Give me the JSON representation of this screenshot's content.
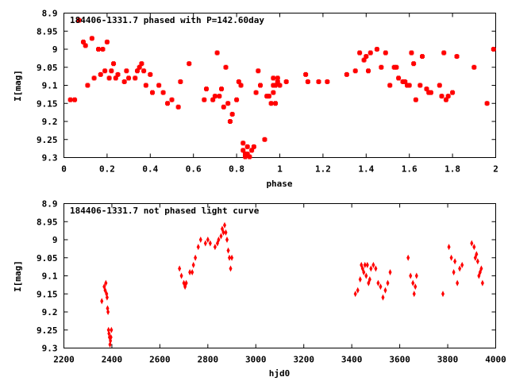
{
  "chart_data": [
    {
      "type": "scatter",
      "title": "184406-1331.7 phased with P=142.60day",
      "xlabel": "phase",
      "ylabel": "I[mag]",
      "xlim": [
        0,
        2
      ],
      "ylim": [
        8.9,
        9.3
      ],
      "y_inverted": true,
      "x_ticks": [
        0,
        0.2,
        0.4,
        0.6,
        0.8,
        1,
        1.2,
        1.4,
        1.6,
        1.8,
        2
      ],
      "x_tick_labels": [
        "0",
        "0.2",
        "0.4",
        "0.6",
        "0.8",
        "1",
        "1.2",
        "1.4",
        "1.6",
        "1.8",
        "2"
      ],
      "y_ticks": [
        8.9,
        8.95,
        9,
        9.05,
        9.1,
        9.15,
        9.2,
        9.25,
        9.3
      ],
      "y_tick_labels": [
        "8.9",
        "8.95",
        "9",
        "9.05",
        "9.1",
        "9.15",
        "9.2",
        "9.25",
        "9.3"
      ],
      "marker_color": "#ff0000",
      "x": [
        0.03,
        0.05,
        0.07,
        0.09,
        0.1,
        0.11,
        0.13,
        0.14,
        0.16,
        0.17,
        0.18,
        0.19,
        0.2,
        0.21,
        0.22,
        0.23,
        0.24,
        0.25,
        0.28,
        0.29,
        0.3,
        0.33,
        0.34,
        0.35,
        0.36,
        0.37,
        0.38,
        0.4,
        0.41,
        0.44,
        0.46,
        0.48,
        0.5,
        0.53,
        0.54,
        0.58,
        0.65,
        0.66,
        0.69,
        0.7,
        0.71,
        0.72,
        0.73,
        0.74,
        0.75,
        0.76,
        0.77,
        0.78,
        0.8,
        0.81,
        0.82,
        0.83,
        0.83,
        0.84,
        0.84,
        0.85,
        0.85,
        0.86,
        0.87,
        0.88,
        0.89,
        0.9,
        0.91,
        0.93,
        0.94,
        0.95,
        0.96,
        0.97,
        0.97,
        0.97,
        0.98,
        0.98,
        0.99,
        0.99,
        1.0,
        1.03,
        1.12,
        1.13,
        1.18,
        1.22,
        1.31,
        1.35,
        1.37,
        1.39,
        1.4,
        1.41,
        1.42,
        1.45,
        1.47,
        1.49,
        1.51,
        1.53,
        1.54,
        1.55,
        1.57,
        1.58,
        1.59,
        1.6,
        1.61,
        1.62,
        1.63,
        1.65,
        1.66,
        1.68,
        1.69,
        1.7,
        1.74,
        1.75,
        1.76,
        1.77,
        1.78,
        1.8,
        1.82,
        1.9,
        1.96,
        1.99
      ],
      "y": [
        9.14,
        9.14,
        8.92,
        8.98,
        8.99,
        9.1,
        8.97,
        9.08,
        9.0,
        9.07,
        9.0,
        9.06,
        8.98,
        9.08,
        9.06,
        9.04,
        9.08,
        9.07,
        9.09,
        9.06,
        9.08,
        9.08,
        9.06,
        9.05,
        9.04,
        9.06,
        9.1,
        9.07,
        9.12,
        9.1,
        9.12,
        9.15,
        9.14,
        9.16,
        9.09,
        9.04,
        9.14,
        9.11,
        9.14,
        9.13,
        9.01,
        9.13,
        9.11,
        9.16,
        9.05,
        9.15,
        9.2,
        9.18,
        9.14,
        9.09,
        9.1,
        9.26,
        9.28,
        9.29,
        9.31,
        9.27,
        9.29,
        9.3,
        9.28,
        9.27,
        9.12,
        9.06,
        9.1,
        9.25,
        9.13,
        9.13,
        9.15,
        9.08,
        9.1,
        9.12,
        9.15,
        9.1,
        9.09,
        9.08,
        9.1,
        9.09,
        9.07,
        9.09,
        9.09,
        9.09,
        9.07,
        9.06,
        9.01,
        9.03,
        9.02,
        9.06,
        9.01,
        9.0,
        9.05,
        9.01,
        9.1,
        9.05,
        9.05,
        9.08,
        9.09,
        9.09,
        9.1,
        9.1,
        9.01,
        9.04,
        9.14,
        9.1,
        9.02,
        9.11,
        9.12,
        9.12,
        9.1,
        9.13,
        9.01,
        9.14,
        9.13,
        9.12,
        9.02,
        9.05,
        9.15,
        9.0
      ]
    },
    {
      "type": "scatter",
      "title": "184406-1331.7 not phased light curve",
      "xlabel": "hjd0",
      "ylabel": "I[mag]",
      "xlim": [
        2200,
        4000
      ],
      "ylim": [
        8.9,
        9.3
      ],
      "y_inverted": true,
      "x_ticks": [
        2200,
        2400,
        2600,
        2800,
        3000,
        3200,
        3400,
        3600,
        3800,
        4000
      ],
      "x_tick_labels": [
        "2200",
        "2400",
        "2600",
        "2800",
        "3000",
        "3200",
        "3400",
        "3600",
        "3800",
        "4000"
      ],
      "y_ticks": [
        8.9,
        8.95,
        9,
        9.05,
        9.1,
        9.15,
        9.2,
        9.25,
        9.3
      ],
      "y_tick_labels": [
        "8.9",
        "8.95",
        "9",
        "9.05",
        "9.1",
        "9.15",
        "9.2",
        "9.25",
        "9.3"
      ],
      "marker_color": "#ff0000",
      "x": [
        2358,
        2368,
        2372,
        2375,
        2378,
        2380,
        2382,
        2384,
        2386,
        2388,
        2390,
        2392,
        2394,
        2396,
        2398,
        2682,
        2690,
        2700,
        2705,
        2710,
        2725,
        2735,
        2740,
        2748,
        2760,
        2770,
        2790,
        2800,
        2810,
        2830,
        2840,
        2845,
        2855,
        2860,
        2865,
        2870,
        2875,
        2880,
        2885,
        2890,
        2895,
        2900,
        3415,
        3425,
        3435,
        3440,
        3445,
        3450,
        3455,
        3460,
        3465,
        3470,
        3475,
        3480,
        3490,
        3500,
        3510,
        3520,
        3530,
        3540,
        3550,
        3560,
        3635,
        3645,
        3655,
        3660,
        3665,
        3670,
        3780,
        3805,
        3815,
        3825,
        3830,
        3840,
        3850,
        3860,
        3900,
        3910,
        3915,
        3920,
        3925,
        3930,
        3935,
        3940,
        3945
      ],
      "y": [
        9.17,
        9.13,
        9.14,
        9.12,
        9.15,
        9.16,
        9.19,
        9.2,
        9.25,
        9.26,
        9.27,
        9.29,
        9.28,
        9.27,
        9.25,
        9.08,
        9.1,
        9.12,
        9.13,
        9.12,
        9.09,
        9.09,
        9.07,
        9.05,
        9.02,
        9.0,
        9.01,
        9.0,
        9.01,
        9.02,
        9.01,
        9.0,
        8.99,
        8.97,
        8.98,
        8.96,
        8.98,
        9.0,
        9.03,
        9.05,
        9.08,
        9.05,
        9.15,
        9.14,
        9.11,
        9.07,
        9.08,
        9.09,
        9.07,
        9.1,
        9.07,
        9.12,
        9.11,
        9.08,
        9.07,
        9.08,
        9.12,
        9.13,
        9.16,
        9.14,
        9.12,
        9.09,
        9.05,
        9.1,
        9.12,
        9.15,
        9.13,
        9.1,
        9.15,
        9.02,
        9.05,
        9.09,
        9.06,
        9.12,
        9.08,
        9.07,
        9.01,
        9.02,
        9.05,
        9.04,
        9.06,
        9.1,
        9.09,
        9.08,
        9.12
      ]
    }
  ]
}
